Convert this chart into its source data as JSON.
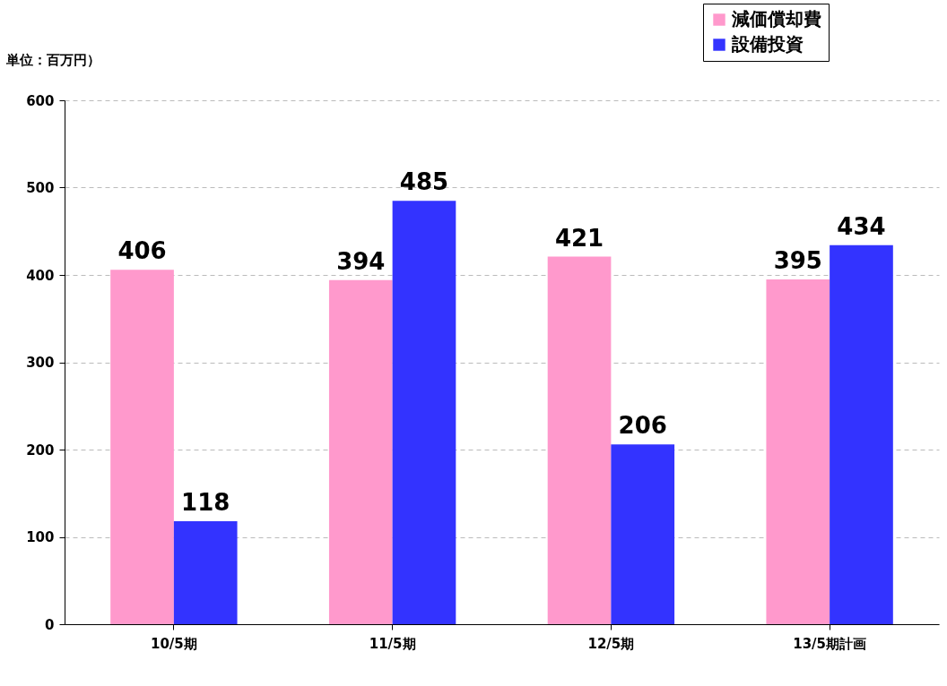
{
  "chart_data": {
    "type": "bar",
    "ylabel": "単位：百万円）",
    "categories": [
      "10/5期",
      "11/5期",
      "12/5期",
      "13/5期計画"
    ],
    "series": [
      {
        "name": "減価償却費",
        "color": "#ff99cc",
        "values": [
          406,
          394,
          421,
          395
        ]
      },
      {
        "name": "設備投資",
        "color": "#3333ff",
        "values": [
          118,
          485,
          206,
          434
        ]
      }
    ],
    "ylim": [
      0,
      600
    ],
    "yticks": [
      0,
      100,
      200,
      300,
      400,
      500,
      600
    ],
    "grid": "y",
    "legend": "top right",
    "data_labels": true
  }
}
